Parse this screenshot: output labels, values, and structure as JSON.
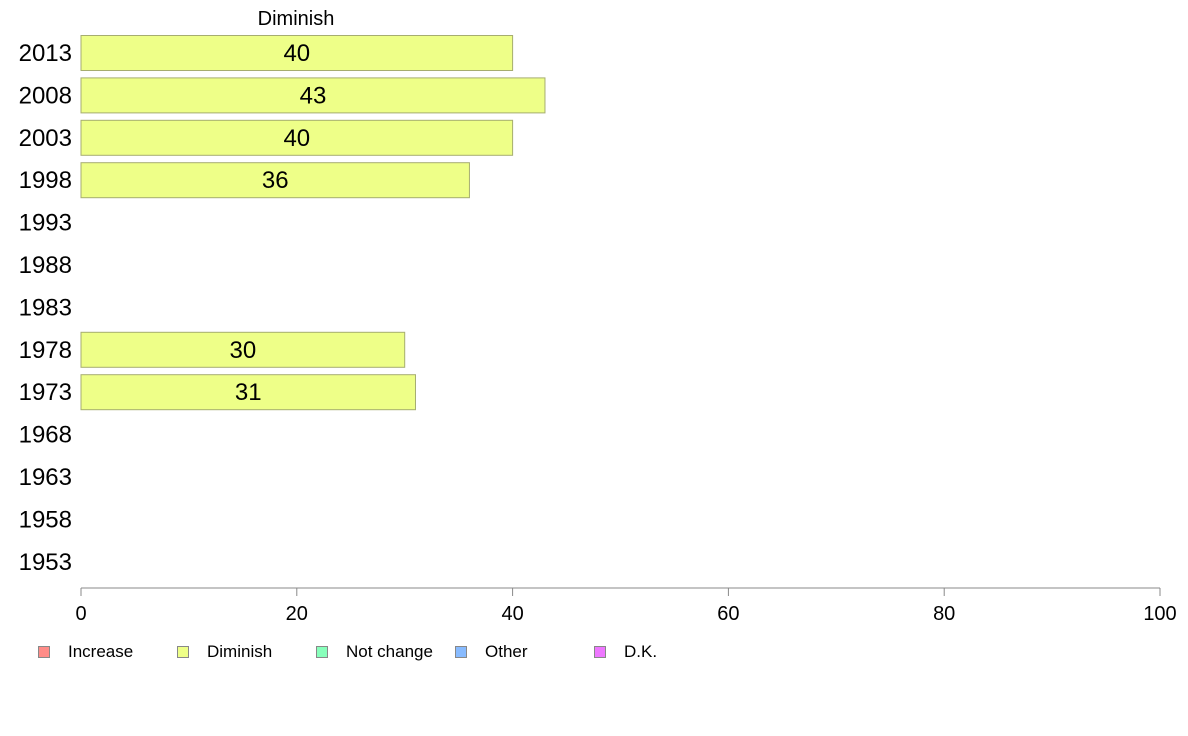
{
  "chart_data": {
    "type": "bar",
    "orientation": "horizontal",
    "title": "Diminish",
    "categories": [
      "2013",
      "2008",
      "2003",
      "1998",
      "1993",
      "1988",
      "1983",
      "1978",
      "1973",
      "1968",
      "1963",
      "1958",
      "1953"
    ],
    "series": [
      {
        "name": "Diminish",
        "color": "#eeff88",
        "values": [
          40,
          43,
          40,
          36,
          null,
          null,
          null,
          30,
          31,
          null,
          null,
          null,
          null
        ]
      }
    ],
    "xlim": [
      0,
      100
    ],
    "xticks": [
      0,
      20,
      40,
      60,
      80,
      100
    ],
    "grid": false,
    "legend_position": "bottom-left",
    "legend": [
      {
        "label": "Increase",
        "color": "#ff8c88"
      },
      {
        "label": "Diminish",
        "color": "#eeff88"
      },
      {
        "label": "Not change",
        "color": "#88ffbb"
      },
      {
        "label": "Other",
        "color": "#88bbff"
      },
      {
        "label": "D.K.",
        "color": "#ee77ff"
      }
    ]
  }
}
